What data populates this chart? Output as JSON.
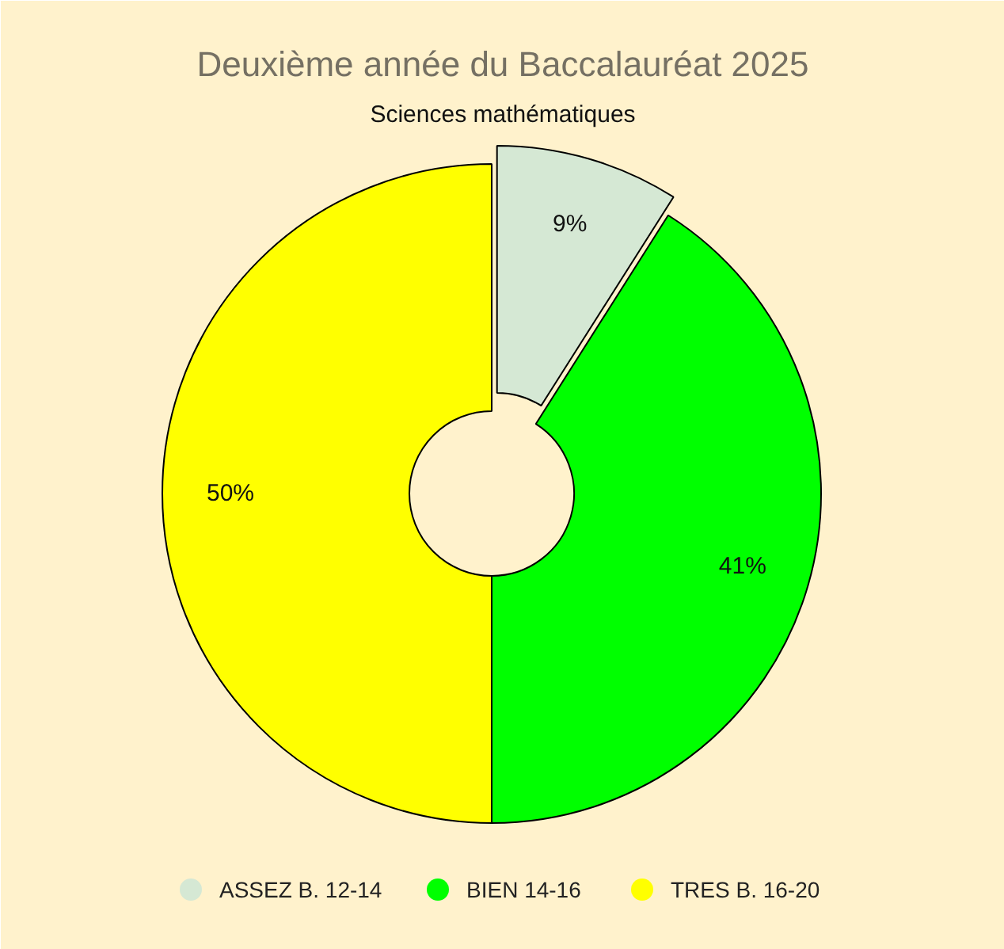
{
  "chart_data": {
    "type": "donut",
    "title": "Deuxième année du Baccalauréat 2025",
    "subtitle": "Sciences mathématiques",
    "categories": [
      "ASSEZ B. 12-14",
      "BIEN  14-16",
      "TRES B. 16-20"
    ],
    "values": [
      9,
      41,
      50
    ],
    "value_labels": [
      "9%",
      "41%",
      "50%"
    ],
    "colors": [
      "#d5e8d4",
      "#00ff00",
      "#ffff00"
    ],
    "legend": "bottom"
  }
}
